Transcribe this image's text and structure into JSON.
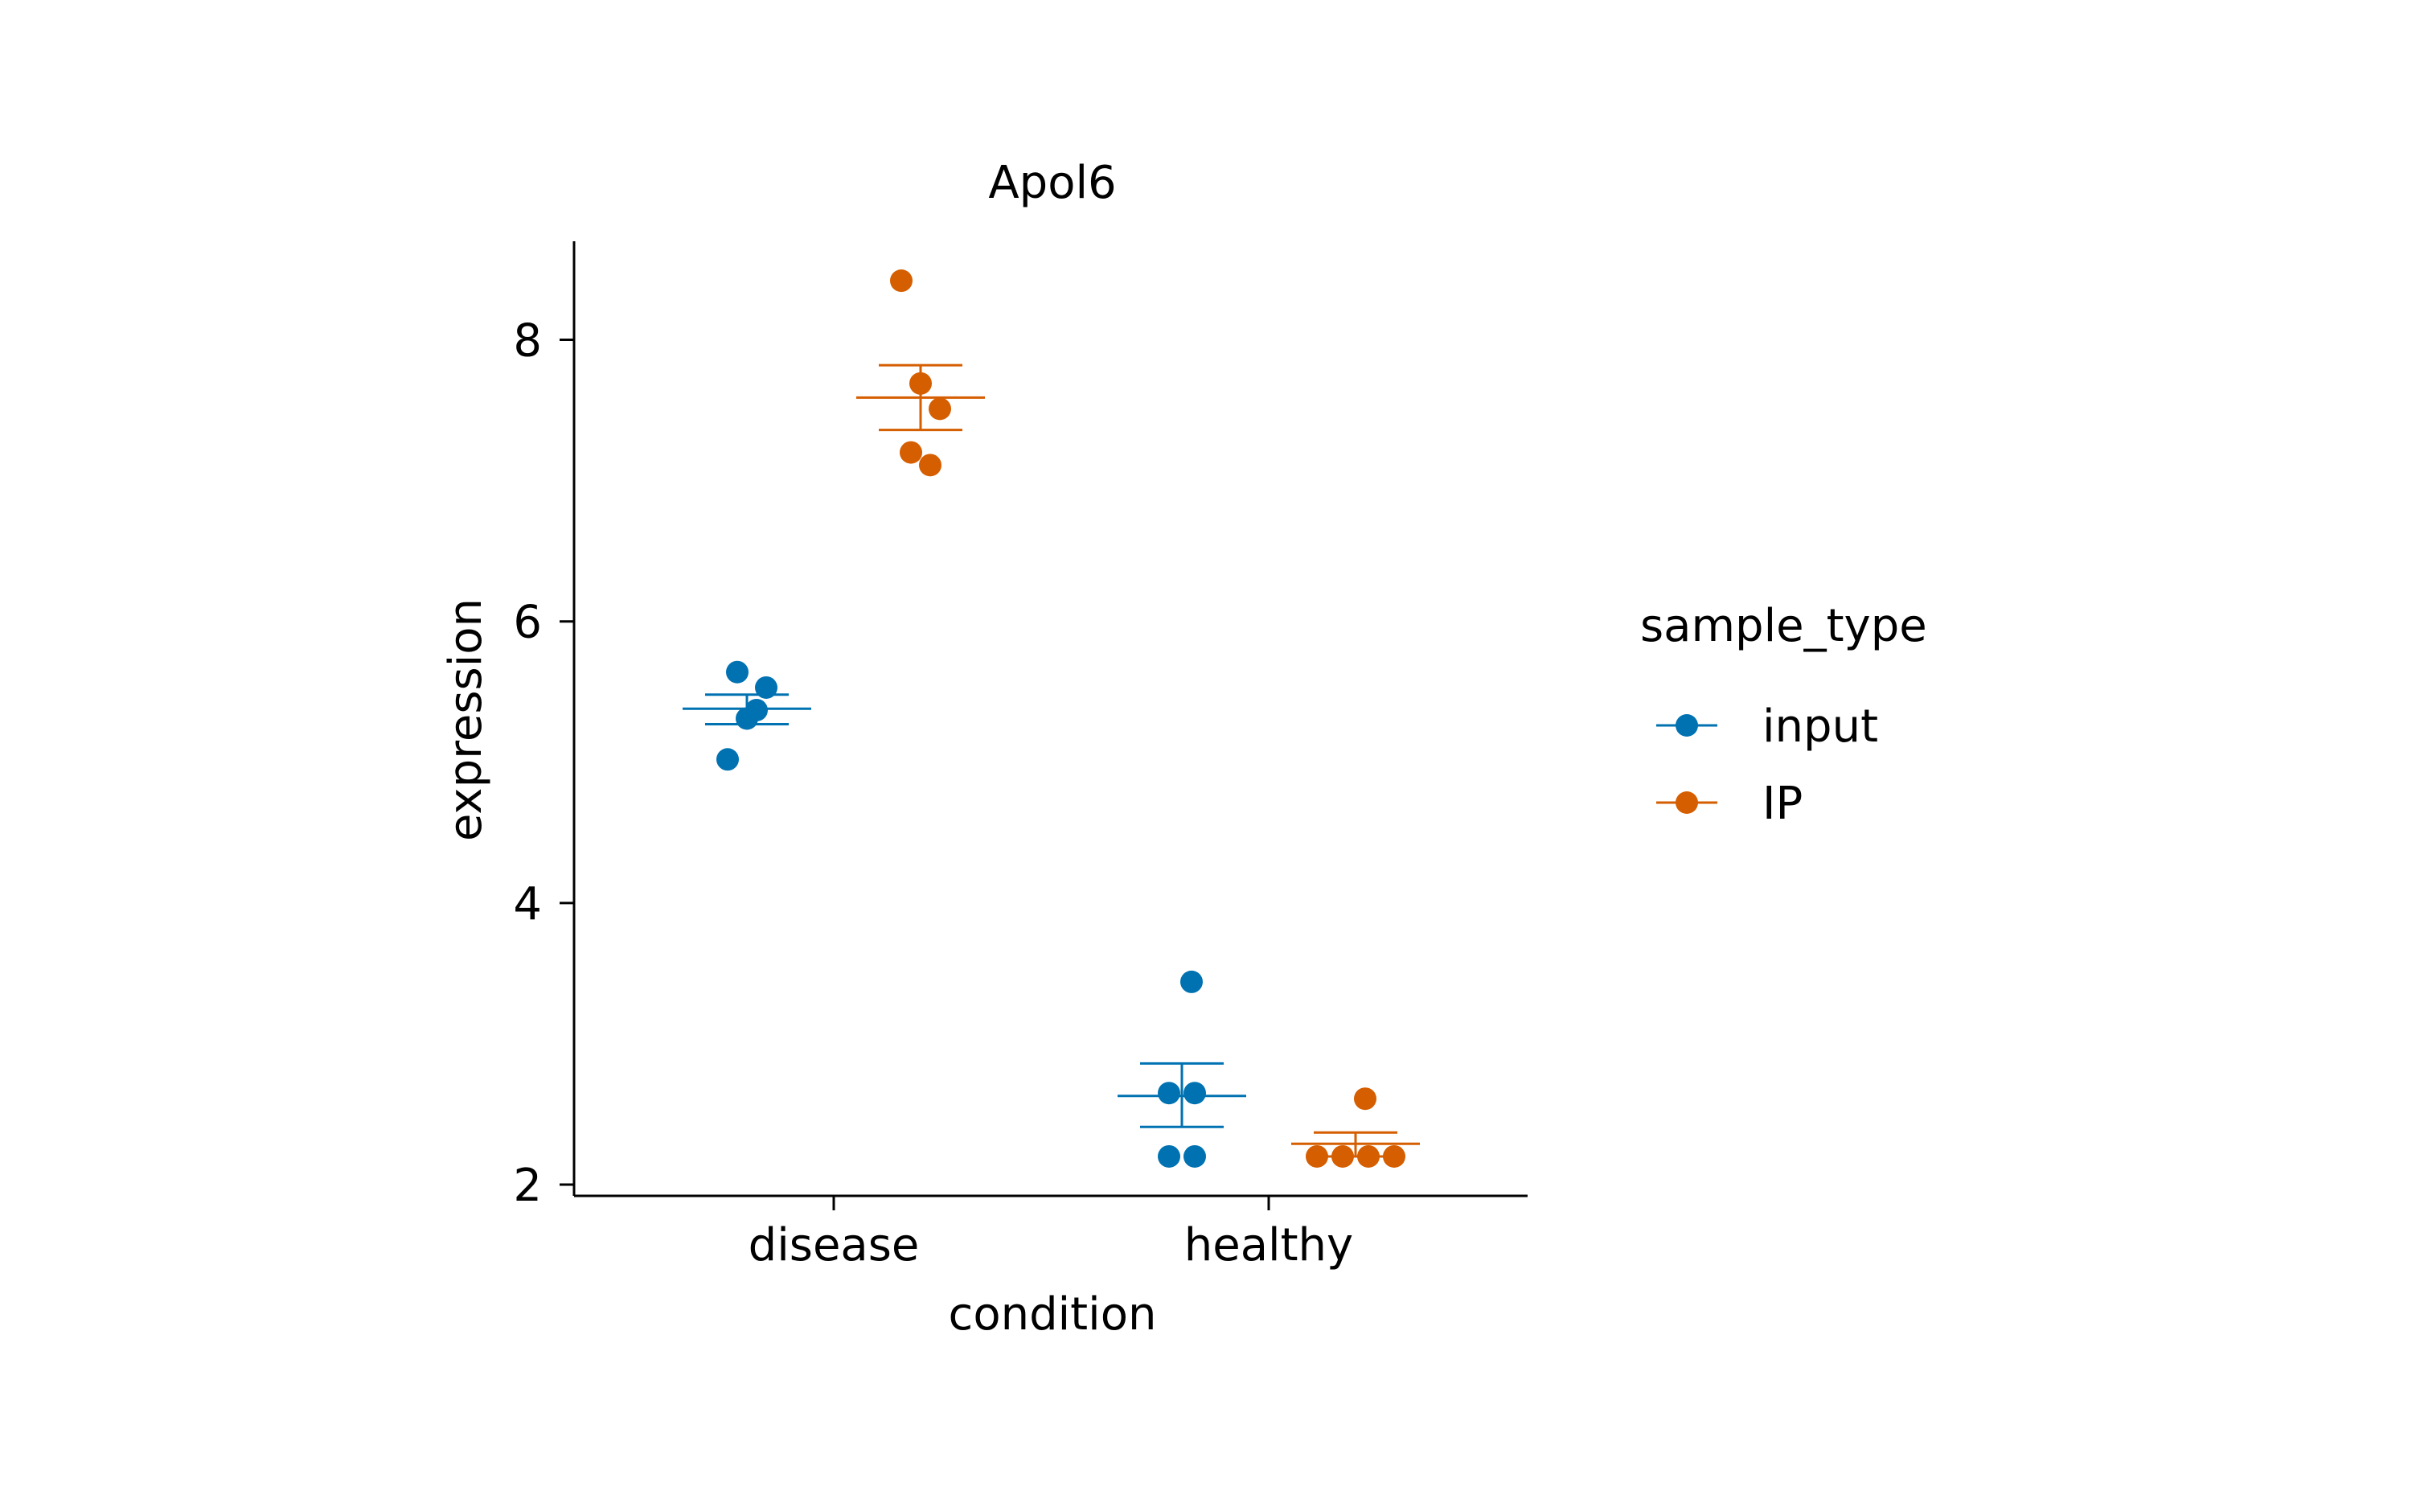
{
  "chart_data": {
    "type": "scatter",
    "title": "Apol6",
    "xlabel": "condition",
    "ylabel": "expression",
    "categories": [
      "disease",
      "healthy"
    ],
    "ylim": [
      1.92,
      8.7
    ],
    "yticks": [
      2,
      4,
      6,
      8
    ],
    "grid": false,
    "legend": {
      "title": "sample_type",
      "placement": "right"
    },
    "series": [
      {
        "name": "input",
        "color": "#0072B2",
        "points": {
          "disease": [
            5.02,
            5.31,
            5.53,
            5.64,
            5.37
          ],
          "healthy": [
            2.2,
            2.2,
            2.65,
            2.65,
            3.44
          ]
        },
        "summary": {
          "disease": {
            "mean": 5.38,
            "upper": 5.48,
            "lower": 5.27
          },
          "healthy": {
            "mean": 2.63,
            "upper": 2.86,
            "lower": 2.41
          }
        }
      },
      {
        "name": "IP",
        "color": "#D55E00",
        "points": {
          "disease": [
            8.42,
            7.69,
            7.51,
            7.2,
            7.11
          ],
          "healthy": [
            2.2,
            2.2,
            2.2,
            2.2,
            2.61
          ]
        },
        "summary": {
          "disease": {
            "mean": 7.59,
            "upper": 7.82,
            "lower": 7.36
          },
          "healthy": {
            "mean": 2.29,
            "upper": 2.37,
            "lower": 2.2
          }
        }
      }
    ]
  }
}
